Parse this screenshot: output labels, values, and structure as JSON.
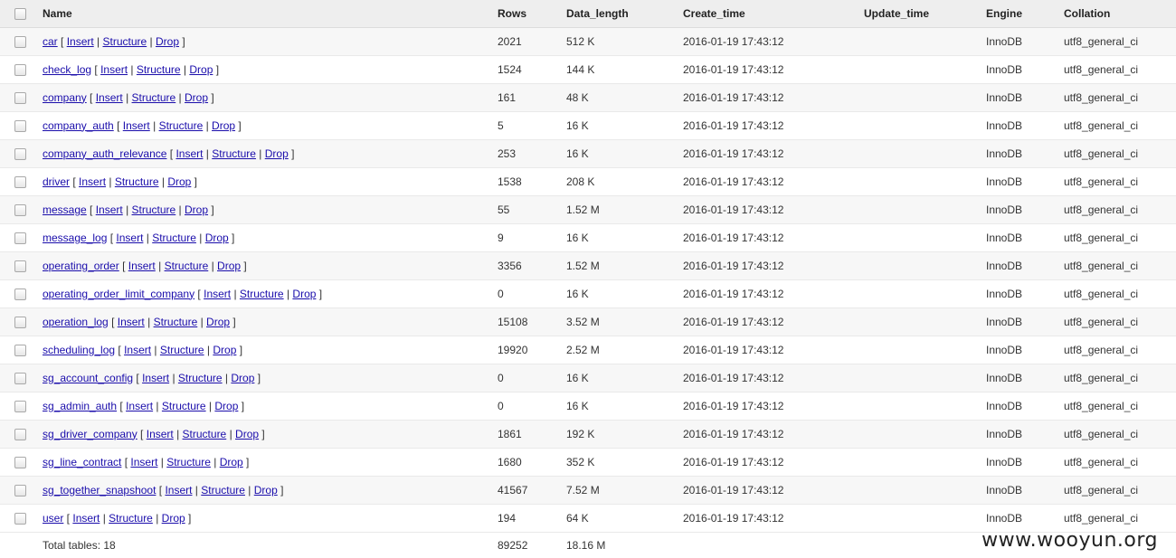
{
  "columns": [
    "Name",
    "Rows",
    "Data_length",
    "Create_time",
    "Update_time",
    "Engine",
    "Collation"
  ],
  "actions": {
    "insert": "Insert",
    "structure": "Structure",
    "drop": "Drop"
  },
  "rows": [
    {
      "name": "car",
      "rows": "2021",
      "data_length": "512 K",
      "create_time": "2016-01-19 17:43:12",
      "update_time": "",
      "engine": "InnoDB",
      "collation": "utf8_general_ci"
    },
    {
      "name": "check_log",
      "rows": "1524",
      "data_length": "144 K",
      "create_time": "2016-01-19 17:43:12",
      "update_time": "",
      "engine": "InnoDB",
      "collation": "utf8_general_ci"
    },
    {
      "name": "company",
      "rows": "161",
      "data_length": "48 K",
      "create_time": "2016-01-19 17:43:12",
      "update_time": "",
      "engine": "InnoDB",
      "collation": "utf8_general_ci"
    },
    {
      "name": "company_auth",
      "rows": "5",
      "data_length": "16 K",
      "create_time": "2016-01-19 17:43:12",
      "update_time": "",
      "engine": "InnoDB",
      "collation": "utf8_general_ci"
    },
    {
      "name": "company_auth_relevance",
      "rows": "253",
      "data_length": "16 K",
      "create_time": "2016-01-19 17:43:12",
      "update_time": "",
      "engine": "InnoDB",
      "collation": "utf8_general_ci"
    },
    {
      "name": "driver",
      "rows": "1538",
      "data_length": "208 K",
      "create_time": "2016-01-19 17:43:12",
      "update_time": "",
      "engine": "InnoDB",
      "collation": "utf8_general_ci"
    },
    {
      "name": "message",
      "rows": "55",
      "data_length": "1.52 M",
      "create_time": "2016-01-19 17:43:12",
      "update_time": "",
      "engine": "InnoDB",
      "collation": "utf8_general_ci"
    },
    {
      "name": "message_log",
      "rows": "9",
      "data_length": "16 K",
      "create_time": "2016-01-19 17:43:12",
      "update_time": "",
      "engine": "InnoDB",
      "collation": "utf8_general_ci"
    },
    {
      "name": "operating_order",
      "rows": "3356",
      "data_length": "1.52 M",
      "create_time": "2016-01-19 17:43:12",
      "update_time": "",
      "engine": "InnoDB",
      "collation": "utf8_general_ci"
    },
    {
      "name": "operating_order_limit_company",
      "rows": "0",
      "data_length": "16 K",
      "create_time": "2016-01-19 17:43:12",
      "update_time": "",
      "engine": "InnoDB",
      "collation": "utf8_general_ci"
    },
    {
      "name": "operation_log",
      "rows": "15108",
      "data_length": "3.52 M",
      "create_time": "2016-01-19 17:43:12",
      "update_time": "",
      "engine": "InnoDB",
      "collation": "utf8_general_ci"
    },
    {
      "name": "scheduling_log",
      "rows": "19920",
      "data_length": "2.52 M",
      "create_time": "2016-01-19 17:43:12",
      "update_time": "",
      "engine": "InnoDB",
      "collation": "utf8_general_ci"
    },
    {
      "name": "sg_account_config",
      "rows": "0",
      "data_length": "16 K",
      "create_time": "2016-01-19 17:43:12",
      "update_time": "",
      "engine": "InnoDB",
      "collation": "utf8_general_ci"
    },
    {
      "name": "sg_admin_auth",
      "rows": "0",
      "data_length": "16 K",
      "create_time": "2016-01-19 17:43:12",
      "update_time": "",
      "engine": "InnoDB",
      "collation": "utf8_general_ci"
    },
    {
      "name": "sg_driver_company",
      "rows": "1861",
      "data_length": "192 K",
      "create_time": "2016-01-19 17:43:12",
      "update_time": "",
      "engine": "InnoDB",
      "collation": "utf8_general_ci"
    },
    {
      "name": "sg_line_contract",
      "rows": "1680",
      "data_length": "352 K",
      "create_time": "2016-01-19 17:43:12",
      "update_time": "",
      "engine": "InnoDB",
      "collation": "utf8_general_ci"
    },
    {
      "name": "sg_together_snapshoot",
      "rows": "41567",
      "data_length": "7.52 M",
      "create_time": "2016-01-19 17:43:12",
      "update_time": "",
      "engine": "InnoDB",
      "collation": "utf8_general_ci"
    },
    {
      "name": "user",
      "rows": "194",
      "data_length": "64 K",
      "create_time": "2016-01-19 17:43:12",
      "update_time": "",
      "engine": "InnoDB",
      "collation": "utf8_general_ci"
    }
  ],
  "footer": {
    "total_label": "Total tables: 18",
    "total_rows": "89252",
    "total_length": "18.16 M"
  },
  "watermark": "www.wooyun.org"
}
